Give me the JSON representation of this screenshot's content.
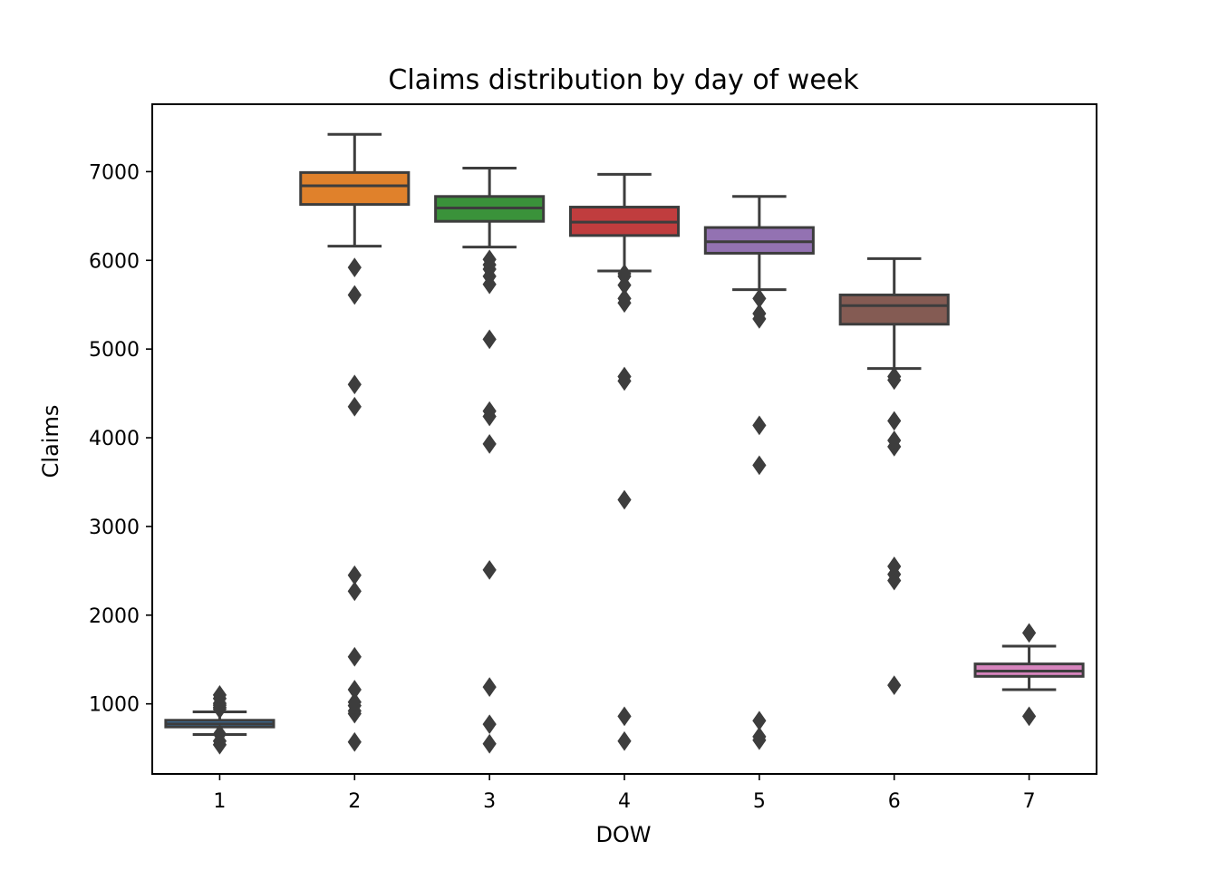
{
  "chart_data": {
    "type": "box",
    "title": "Claims distribution by day of week",
    "xlabel": "DOW",
    "ylabel": "Claims",
    "categories": [
      "1",
      "2",
      "3",
      "4",
      "5",
      "6",
      "7"
    ],
    "yticks": [
      1000,
      2000,
      3000,
      4000,
      5000,
      6000,
      7000
    ],
    "ytick_labels": [
      "1000",
      "2000",
      "3000",
      "4000",
      "5000",
      "6000",
      "7000"
    ],
    "ylim": [
      210,
      7760
    ],
    "grid": false,
    "legend": "none",
    "box_edge_color": "#3d3d3d",
    "boxes": [
      {
        "category": "1",
        "color": "#3a76af",
        "whisker_low": 655,
        "q1": 740,
        "median": 775,
        "q3": 815,
        "whisker_high": 910,
        "outliers": [
          540,
          580,
          660,
          940,
          960,
          985,
          1005,
          1060,
          1100
        ]
      },
      {
        "category": "2",
        "color": "#e0812b",
        "whisker_low": 6160,
        "q1": 6630,
        "median": 6840,
        "q3": 6990,
        "whisker_high": 7420,
        "outliers": [
          570,
          890,
          920,
          980,
          1020,
          1160,
          1530,
          2270,
          2450,
          4350,
          4600,
          5610,
          5920
        ]
      },
      {
        "category": "3",
        "color": "#3a923a",
        "whisker_low": 6150,
        "q1": 6440,
        "median": 6590,
        "q3": 6720,
        "whisker_high": 7040,
        "outliers": [
          550,
          770,
          1190,
          2510,
          3930,
          4240,
          4300,
          5110,
          5730,
          5820,
          5900,
          5950,
          6010
        ]
      },
      {
        "category": "4",
        "color": "#c03d3e",
        "whisker_low": 5880,
        "q1": 6280,
        "median": 6430,
        "q3": 6600,
        "whisker_high": 6970,
        "outliers": [
          580,
          860,
          3300,
          4640,
          4690,
          5520,
          5570,
          5720,
          5820,
          5850
        ]
      },
      {
        "category": "5",
        "color": "#9372b2",
        "whisker_low": 5670,
        "q1": 6080,
        "median": 6210,
        "q3": 6370,
        "whisker_high": 6720,
        "outliers": [
          590,
          630,
          810,
          3690,
          4140,
          5340,
          5400,
          5570
        ]
      },
      {
        "category": "6",
        "color": "#845b53",
        "whisker_low": 4780,
        "q1": 5280,
        "median": 5490,
        "q3": 5610,
        "whisker_high": 6020,
        "outliers": [
          1210,
          2390,
          2460,
          2550,
          3900,
          3970,
          4190,
          4650,
          4690
        ]
      },
      {
        "category": "7",
        "color": "#d684bd",
        "whisker_low": 1160,
        "q1": 1310,
        "median": 1370,
        "q3": 1450,
        "whisker_high": 1650,
        "outliers": [
          860,
          1800
        ]
      }
    ]
  }
}
